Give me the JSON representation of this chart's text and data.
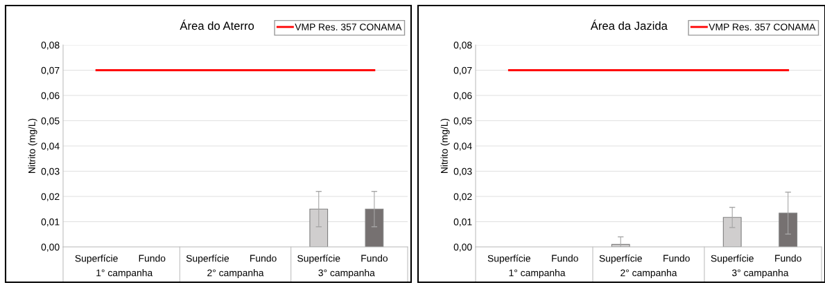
{
  "chart_data": [
    {
      "type": "bar",
      "title": "Área do Aterro",
      "ylabel": "Nitrito (mg/L)",
      "categories": [
        "Superfície",
        "Fundo",
        "Superfície",
        "Fundo",
        "Superfície",
        "Fundo"
      ],
      "series": [
        {
          "colors": [
            "#d0cece",
            "#767171",
            "#d0cece",
            "#767171",
            "#d0cece",
            "#767171"
          ],
          "values": [
            null,
            null,
            null,
            null,
            0.015,
            0.015
          ],
          "errors": [
            null,
            null,
            null,
            null,
            0.007,
            0.007
          ]
        },
        {
          "type": "line",
          "name": "VMP Res. 357 CONAMA",
          "color": "#ff0000",
          "values": [
            0.07,
            0.07,
            0.07,
            0.07,
            0.07,
            0.07
          ]
        }
      ],
      "annotations": [
        "1° campanha",
        "2° campanha",
        "3° campanha"
      ],
      "ylim": [
        0,
        0.08
      ],
      "yticks": [
        {
          "value": 0,
          "label": "0,00"
        },
        {
          "value": 0.01,
          "label": "0,01"
        },
        {
          "value": 0.02,
          "label": "0,02"
        },
        {
          "value": 0.03,
          "label": "0,03"
        },
        {
          "value": 0.04,
          "label": "0,04"
        },
        {
          "value": 0.05,
          "label": "0,05"
        },
        {
          "value": 0.06,
          "label": "0,06"
        },
        {
          "value": 0.07,
          "label": "0,07"
        },
        {
          "value": 0.08,
          "label": "0,08"
        }
      ],
      "grid": "y",
      "legend": "top right",
      "marker": "none",
      "line_style": "solid"
    },
    {
      "type": "bar",
      "title": "Área da Jazida",
      "ylabel": "Nitrito (mg/L)",
      "categories": [
        "Superfície",
        "Fundo",
        "Superfície",
        "Fundo",
        "Superfície",
        "Fundo"
      ],
      "series": [
        {
          "colors": [
            "#d0cece",
            "#767171",
            "#d0cece",
            "#767171",
            "#d0cece",
            "#767171"
          ],
          "values": [
            null,
            null,
            0.001,
            null,
            0.0117,
            0.0134
          ],
          "errors": [
            null,
            null,
            0.003,
            null,
            0.004,
            0.0083
          ]
        },
        {
          "type": "line",
          "name": "VMP Res. 357 CONAMA",
          "color": "#ff0000",
          "values": [
            0.07,
            0.07,
            0.07,
            0.07,
            0.07,
            0.07
          ]
        }
      ],
      "annotations": [
        "1° campanha",
        "2° campanha",
        "3° campanha"
      ],
      "ylim": [
        0,
        0.08
      ],
      "yticks": [
        {
          "value": 0,
          "label": "0,00"
        },
        {
          "value": 0.01,
          "label": "0,01"
        },
        {
          "value": 0.02,
          "label": "0,02"
        },
        {
          "value": 0.03,
          "label": "0,03"
        },
        {
          "value": 0.04,
          "label": "0,04"
        },
        {
          "value": 0.05,
          "label": "0,05"
        },
        {
          "value": 0.06,
          "label": "0,06"
        },
        {
          "value": 0.07,
          "label": "0,07"
        },
        {
          "value": 0.08,
          "label": "0,08"
        }
      ],
      "grid": "y",
      "legend": "top right",
      "marker": "none",
      "line_style": "solid"
    }
  ]
}
